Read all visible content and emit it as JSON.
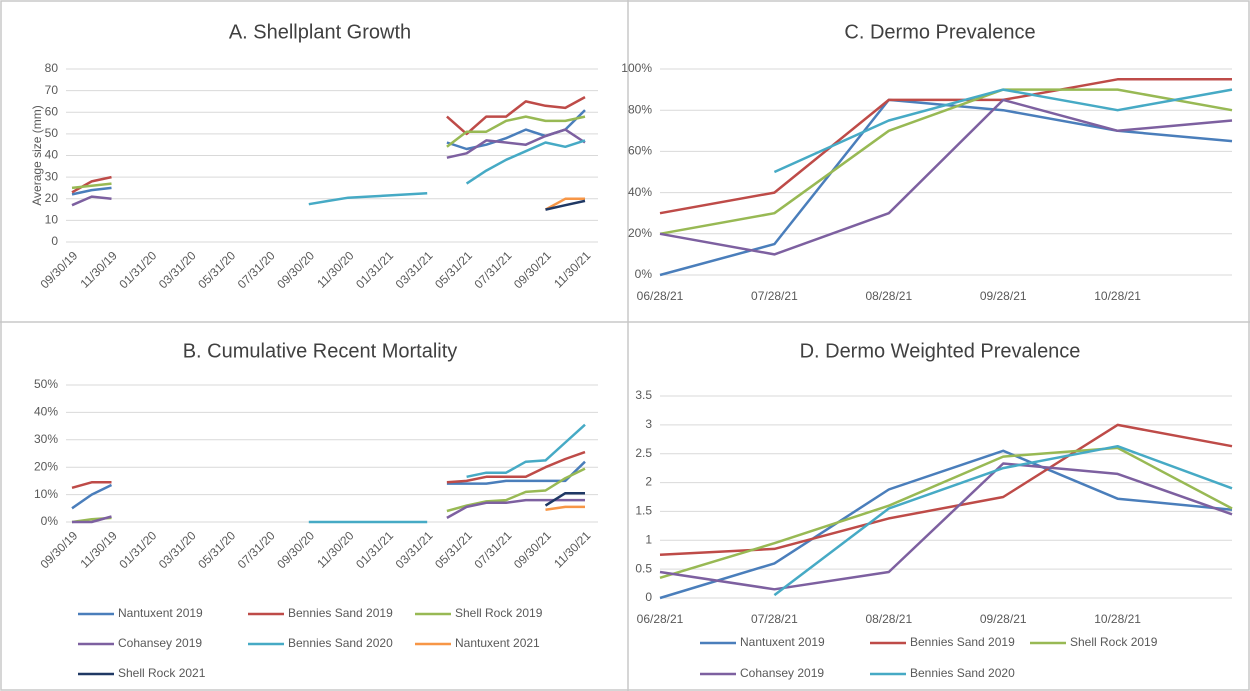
{
  "chart_data": [
    {
      "type": "line",
      "title": "A. Shellplant Growth",
      "y_label": "Average size (mm)",
      "categories": [
        "09/30/19",
        null,
        "11/30/19",
        null,
        "01/31/20",
        null,
        "03/31/20",
        null,
        "05/31/20",
        null,
        "07/31/20",
        null,
        "09/30/20",
        null,
        "11/30/20",
        null,
        "01/31/21",
        null,
        "03/31/21",
        null,
        "05/31/21",
        null,
        "07/31/21",
        null,
        "09/30/21",
        null,
        "11/30/21"
      ],
      "ylim": [
        0,
        80
      ],
      "yticks": [
        0,
        10,
        20,
        30,
        40,
        50,
        60,
        70,
        80
      ],
      "grid": true,
      "series": [
        {
          "name": "Nantuxent 2019",
          "color": "#4a7ebb",
          "values": [
            22,
            24,
            25,
            null,
            null,
            null,
            null,
            null,
            null,
            null,
            null,
            null,
            null,
            null,
            null,
            null,
            null,
            null,
            null,
            46,
            43,
            45,
            48,
            52,
            49,
            52,
            61
          ]
        },
        {
          "name": "Bennies Sand 2019",
          "color": "#be4b48",
          "values": [
            23,
            28,
            30,
            null,
            null,
            null,
            null,
            null,
            null,
            null,
            null,
            null,
            null,
            null,
            null,
            null,
            null,
            null,
            null,
            58,
            50,
            58,
            58,
            65,
            63,
            62,
            67
          ]
        },
        {
          "name": "Shell Rock 2019",
          "color": "#98b954",
          "values": [
            25,
            26,
            27,
            null,
            null,
            null,
            null,
            null,
            null,
            null,
            null,
            null,
            null,
            null,
            null,
            null,
            null,
            null,
            null,
            44,
            51,
            51,
            56,
            58,
            56,
            56,
            58
          ]
        },
        {
          "name": "Cohansey 2019",
          "color": "#7d60a0",
          "values": [
            17,
            21,
            20,
            null,
            null,
            null,
            null,
            null,
            null,
            null,
            null,
            null,
            null,
            null,
            null,
            null,
            null,
            null,
            null,
            39,
            41,
            47,
            46,
            45,
            49,
            52,
            46
          ]
        },
        {
          "name": "Bennies Sand 2020",
          "color": "#46aac5",
          "values": [
            null,
            null,
            null,
            null,
            null,
            null,
            null,
            null,
            null,
            null,
            null,
            null,
            17.5,
            19,
            20.5,
            21,
            21.5,
            22,
            22.5,
            null,
            27,
            33,
            38,
            42,
            46,
            44,
            47
          ]
        },
        {
          "name": "Nantuxent 2021",
          "color": "#f79646",
          "values": [
            null,
            null,
            null,
            null,
            null,
            null,
            null,
            null,
            null,
            null,
            null,
            null,
            null,
            null,
            null,
            null,
            null,
            null,
            null,
            null,
            null,
            null,
            null,
            null,
            15,
            20,
            20
          ]
        },
        {
          "name": "Shell Rock 2021",
          "color": "#1f3864",
          "values": [
            null,
            null,
            null,
            null,
            null,
            null,
            null,
            null,
            null,
            null,
            null,
            null,
            null,
            null,
            null,
            null,
            null,
            null,
            null,
            null,
            null,
            null,
            null,
            null,
            15,
            17,
            19
          ]
        }
      ]
    },
    {
      "type": "line",
      "title": "B. Cumulative Recent Mortality",
      "categories": [
        "09/30/19",
        null,
        "11/30/19",
        null,
        "01/31/20",
        null,
        "03/31/20",
        null,
        "05/31/20",
        null,
        "07/31/20",
        null,
        "09/30/20",
        null,
        "11/30/20",
        null,
        "01/31/21",
        null,
        "03/31/21",
        null,
        "05/31/21",
        null,
        "07/31/21",
        null,
        "09/30/21",
        null,
        "11/30/21"
      ],
      "ylim": [
        0,
        50
      ],
      "yticks": [
        {
          "value": 0,
          "label": "0%"
        },
        {
          "value": 10,
          "label": "10%"
        },
        {
          "value": 20,
          "label": "20%"
        },
        {
          "value": 30,
          "label": "30%"
        },
        {
          "value": 40,
          "label": "40%"
        },
        {
          "value": 50,
          "label": "50%"
        }
      ],
      "grid": true,
      "legend": "bottom",
      "series": [
        {
          "name": "Nantuxent 2019",
          "color": "#4a7ebb",
          "values": [
            5,
            10,
            13.5,
            null,
            null,
            null,
            null,
            null,
            null,
            null,
            null,
            null,
            null,
            null,
            null,
            null,
            null,
            null,
            null,
            14,
            14,
            14,
            15,
            15,
            15,
            15,
            22
          ]
        },
        {
          "name": "Bennies Sand 2019",
          "color": "#be4b48",
          "values": [
            12.5,
            14.5,
            14.5,
            null,
            null,
            null,
            null,
            null,
            null,
            null,
            null,
            null,
            null,
            null,
            null,
            null,
            null,
            null,
            null,
            14.5,
            15,
            16.5,
            16.5,
            16.5,
            20,
            23,
            25.5
          ]
        },
        {
          "name": "Shell Rock 2019",
          "color": "#98b954",
          "values": [
            0,
            1,
            1.5,
            null,
            null,
            null,
            null,
            null,
            null,
            null,
            null,
            null,
            null,
            null,
            null,
            null,
            null,
            null,
            null,
            4,
            6,
            7.5,
            8,
            11,
            11.5,
            16,
            19.5
          ]
        },
        {
          "name": "Cohansey 2019",
          "color": "#7d60a0",
          "values": [
            0,
            0,
            2,
            null,
            null,
            null,
            null,
            null,
            null,
            null,
            null,
            null,
            null,
            null,
            null,
            null,
            null,
            null,
            null,
            1.5,
            5.5,
            7,
            7,
            8,
            8,
            8,
            8
          ]
        },
        {
          "name": "Bennies Sand 2020",
          "color": "#46aac5",
          "values": [
            null,
            null,
            null,
            null,
            null,
            null,
            null,
            null,
            null,
            null,
            null,
            null,
            0,
            0,
            0,
            0,
            0,
            0,
            0,
            null,
            16.5,
            18,
            18,
            22,
            22.5,
            29,
            35.5
          ]
        },
        {
          "name": "Nantuxent 2021",
          "color": "#f79646",
          "values": [
            null,
            null,
            null,
            null,
            null,
            null,
            null,
            null,
            null,
            null,
            null,
            null,
            null,
            null,
            null,
            null,
            null,
            null,
            null,
            null,
            null,
            null,
            null,
            null,
            4.5,
            5.5,
            5.5
          ]
        },
        {
          "name": "Shell Rock 2021",
          "color": "#1f3864",
          "values": [
            null,
            null,
            null,
            null,
            null,
            null,
            null,
            null,
            null,
            null,
            null,
            null,
            null,
            null,
            null,
            null,
            null,
            null,
            null,
            null,
            null,
            null,
            null,
            null,
            6,
            10.5,
            10.5
          ]
        }
      ]
    },
    {
      "type": "line",
      "title": "C. Dermo Prevalence",
      "categories": [
        "06/28/21",
        "07/28/21",
        "08/28/21",
        "09/28/21",
        "10/28/21",
        null
      ],
      "ylim": [
        0,
        100
      ],
      "yticks": [
        {
          "value": 0,
          "label": "0%"
        },
        {
          "value": 20,
          "label": "20%"
        },
        {
          "value": 40,
          "label": "40%"
        },
        {
          "value": 60,
          "label": "60%"
        },
        {
          "value": 80,
          "label": "80%"
        },
        {
          "value": 100,
          "label": "100%"
        }
      ],
      "grid": true,
      "series": [
        {
          "name": "Nantuxent 2019",
          "color": "#4a7ebb",
          "values": [
            0,
            15,
            85,
            80,
            70,
            65
          ]
        },
        {
          "name": "Bennies Sand 2019",
          "color": "#be4b48",
          "values": [
            30,
            40,
            85,
            85,
            95,
            95
          ]
        },
        {
          "name": "Shell Rock 2019",
          "color": "#98b954",
          "values": [
            20,
            30,
            70,
            90,
            90,
            80
          ]
        },
        {
          "name": "Cohansey 2019",
          "color": "#7d60a0",
          "values": [
            20,
            10,
            30,
            85,
            70,
            75
          ]
        },
        {
          "name": "Bennies Sand 2020",
          "color": "#46aac5",
          "values": [
            null,
            50,
            75,
            90,
            80,
            90
          ]
        }
      ]
    },
    {
      "type": "line",
      "title": "D. Dermo Weighted Prevalence",
      "categories": [
        "06/28/21",
        "07/28/21",
        "08/28/21",
        "09/28/21",
        "10/28/21",
        null
      ],
      "ylim": [
        0,
        3.5
      ],
      "yticks": [
        0,
        0.5,
        1,
        1.5,
        2,
        2.5,
        3,
        3.5
      ],
      "grid": true,
      "legend": "bottom",
      "series": [
        {
          "name": "Nantuxent 2019",
          "color": "#4a7ebb",
          "values": [
            0,
            0.6,
            1.88,
            2.55,
            1.72,
            1.53
          ]
        },
        {
          "name": "Bennies Sand 2019",
          "color": "#be4b48",
          "values": [
            0.75,
            0.85,
            1.38,
            1.75,
            3.0,
            2.63
          ]
        },
        {
          "name": "Shell Rock 2019",
          "color": "#98b954",
          "values": [
            0.35,
            0.95,
            1.6,
            2.45,
            2.6,
            1.55
          ]
        },
        {
          "name": "Cohansey 2019",
          "color": "#7d60a0",
          "values": [
            0.45,
            0.15,
            0.45,
            2.33,
            2.15,
            1.45
          ]
        },
        {
          "name": "Bennies Sand 2020",
          "color": "#46aac5",
          "values": [
            null,
            0.05,
            1.55,
            2.25,
            2.63,
            1.9
          ]
        }
      ]
    }
  ]
}
